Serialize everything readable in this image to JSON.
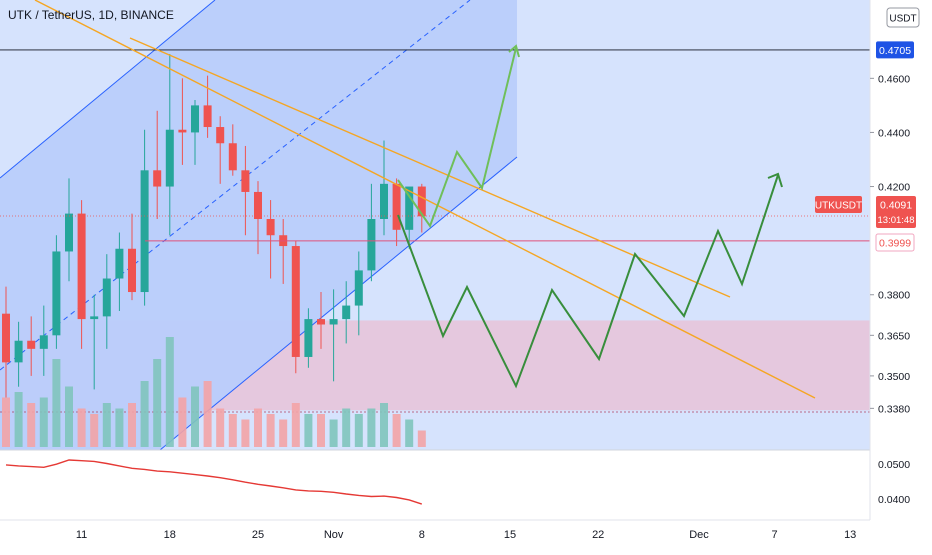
{
  "header": {
    "symbol_title": "UTK / TetherUS, 1D, BINANCE",
    "currency_badge": "USDT"
  },
  "price_labels": {
    "target": "0.4705",
    "symbol": "UTKUSDT",
    "last_price": "0.4091",
    "countdown": "13:01:48",
    "support": "0.3999"
  },
  "chart_data": {
    "type": "candlestick",
    "symbol": "UTK / TetherUS",
    "interval": "1D",
    "exchange": "BINANCE",
    "x_ticks": [
      "11",
      "18",
      "25",
      "Nov",
      "8",
      "15",
      "22",
      "Dec",
      "7",
      "13"
    ],
    "y_ticks": [
      0.46,
      0.44,
      0.42,
      0.38,
      0.365,
      0.35,
      0.338
    ],
    "y_tick_labels": [
      "0.4600",
      "0.4400",
      "0.4200",
      "0.3800",
      "0.3650",
      "0.3500",
      "0.3380"
    ],
    "ylim": [
      0.33,
      0.486
    ],
    "candles": [
      {
        "date": "Oct 5",
        "o": 0.373,
        "h": 0.383,
        "l": 0.342,
        "c": 0.355
      },
      {
        "date": "Oct 6",
        "o": 0.355,
        "h": 0.37,
        "l": 0.346,
        "c": 0.363
      },
      {
        "date": "Oct 7",
        "o": 0.363,
        "h": 0.372,
        "l": 0.35,
        "c": 0.36
      },
      {
        "date": "Oct 8",
        "o": 0.36,
        "h": 0.376,
        "l": 0.35,
        "c": 0.365
      },
      {
        "date": "Oct 9",
        "o": 0.365,
        "h": 0.402,
        "l": 0.36,
        "c": 0.396
      },
      {
        "date": "Oct 10",
        "o": 0.396,
        "h": 0.423,
        "l": 0.385,
        "c": 0.41
      },
      {
        "date": "Oct 11",
        "o": 0.41,
        "h": 0.415,
        "l": 0.36,
        "c": 0.371
      },
      {
        "date": "Oct 12",
        "o": 0.371,
        "h": 0.38,
        "l": 0.345,
        "c": 0.372
      },
      {
        "date": "Oct 13",
        "o": 0.372,
        "h": 0.395,
        "l": 0.36,
        "c": 0.386
      },
      {
        "date": "Oct 14",
        "o": 0.386,
        "h": 0.403,
        "l": 0.374,
        "c": 0.397
      },
      {
        "date": "Oct 15",
        "o": 0.397,
        "h": 0.41,
        "l": 0.378,
        "c": 0.381
      },
      {
        "date": "Oct 16",
        "o": 0.381,
        "h": 0.441,
        "l": 0.376,
        "c": 0.426
      },
      {
        "date": "Oct 17",
        "o": 0.426,
        "h": 0.448,
        "l": 0.408,
        "c": 0.42
      },
      {
        "date": "Oct 18",
        "o": 0.42,
        "h": 0.469,
        "l": 0.402,
        "c": 0.441
      },
      {
        "date": "Oct 19",
        "o": 0.441,
        "h": 0.46,
        "l": 0.428,
        "c": 0.44
      },
      {
        "date": "Oct 20",
        "o": 0.44,
        "h": 0.452,
        "l": 0.428,
        "c": 0.45
      },
      {
        "date": "Oct 21",
        "o": 0.45,
        "h": 0.461,
        "l": 0.438,
        "c": 0.442
      },
      {
        "date": "Oct 22",
        "o": 0.442,
        "h": 0.446,
        "l": 0.421,
        "c": 0.436
      },
      {
        "date": "Oct 23",
        "o": 0.436,
        "h": 0.443,
        "l": 0.424,
        "c": 0.426
      },
      {
        "date": "Oct 24",
        "o": 0.426,
        "h": 0.435,
        "l": 0.402,
        "c": 0.418
      },
      {
        "date": "Oct 25",
        "o": 0.418,
        "h": 0.422,
        "l": 0.395,
        "c": 0.408
      },
      {
        "date": "Oct 26",
        "o": 0.408,
        "h": 0.415,
        "l": 0.386,
        "c": 0.402
      },
      {
        "date": "Oct 27",
        "o": 0.402,
        "h": 0.408,
        "l": 0.384,
        "c": 0.398
      },
      {
        "date": "Oct 28",
        "o": 0.398,
        "h": 0.4,
        "l": 0.351,
        "c": 0.357
      },
      {
        "date": "Oct 29",
        "o": 0.357,
        "h": 0.375,
        "l": 0.353,
        "c": 0.371
      },
      {
        "date": "Oct 30",
        "o": 0.371,
        "h": 0.381,
        "l": 0.36,
        "c": 0.369
      },
      {
        "date": "Oct 31",
        "o": 0.369,
        "h": 0.382,
        "l": 0.348,
        "c": 0.371
      },
      {
        "date": "Nov 1",
        "o": 0.371,
        "h": 0.385,
        "l": 0.362,
        "c": 0.376
      },
      {
        "date": "Nov 2",
        "o": 0.376,
        "h": 0.396,
        "l": 0.365,
        "c": 0.389
      },
      {
        "date": "Nov 3",
        "o": 0.389,
        "h": 0.421,
        "l": 0.385,
        "c": 0.408
      },
      {
        "date": "Nov 4",
        "o": 0.408,
        "h": 0.437,
        "l": 0.402,
        "c": 0.421
      },
      {
        "date": "Nov 5",
        "o": 0.421,
        "h": 0.423,
        "l": 0.398,
        "c": 0.404
      },
      {
        "date": "Nov 6",
        "o": 0.404,
        "h": 0.419,
        "l": 0.397,
        "c": 0.42
      },
      {
        "date": "Nov 7",
        "o": 0.42,
        "h": 0.421,
        "l": 0.403,
        "c": 0.409
      }
    ],
    "volume_series": [
      9,
      10,
      8,
      9,
      16,
      11,
      7,
      6,
      8,
      7,
      8,
      12,
      16,
      20,
      9,
      11,
      12,
      7,
      6,
      5,
      7,
      6,
      5,
      8,
      6,
      6,
      5,
      7,
      6,
      7,
      8,
      6,
      5,
      3
    ],
    "volume_up_flags": [
      false,
      true,
      false,
      true,
      true,
      true,
      false,
      false,
      true,
      true,
      false,
      true,
      true,
      true,
      false,
      true,
      false,
      false,
      false,
      false,
      false,
      false,
      false,
      false,
      true,
      false,
      true,
      true,
      true,
      true,
      true,
      false,
      true,
      false
    ],
    "indicator_ticks": [
      0.05,
      0.04
    ],
    "indicator_tick_labels": [
      "0.0500",
      "0.0400"
    ],
    "indicator_ylim": [
      0.0345,
      0.0535
    ],
    "indicator_series": [
      0.0498,
      0.0495,
      0.0493,
      0.0491,
      0.05,
      0.0512,
      0.051,
      0.0508,
      0.0502,
      0.0495,
      0.0488,
      0.0485,
      0.048,
      0.0478,
      0.0474,
      0.047,
      0.0466,
      0.0461,
      0.0455,
      0.0448,
      0.0442,
      0.0437,
      0.0432,
      0.0426,
      0.0423,
      0.0422,
      0.0419,
      0.0414,
      0.041,
      0.0407,
      0.0408,
      0.0404,
      0.0397,
      0.0385
    ],
    "levels": {
      "target": 0.4705,
      "last_price": 0.4091,
      "support": 0.3999
    },
    "zones": [
      {
        "name": "demand-zone",
        "y_from": 0.3373,
        "y_to": 0.3705,
        "color": "#e8b4c8"
      }
    ],
    "colors": {
      "up": "#26a69a",
      "down": "#ef5350",
      "channel_fill": "#b7cbfb",
      "projection_green": "#388e3c",
      "trendline_orange": "#f5a623",
      "indicator_line": "#e53935",
      "target_badge": "#1e53e5",
      "price_badge": "#ef5350"
    }
  }
}
